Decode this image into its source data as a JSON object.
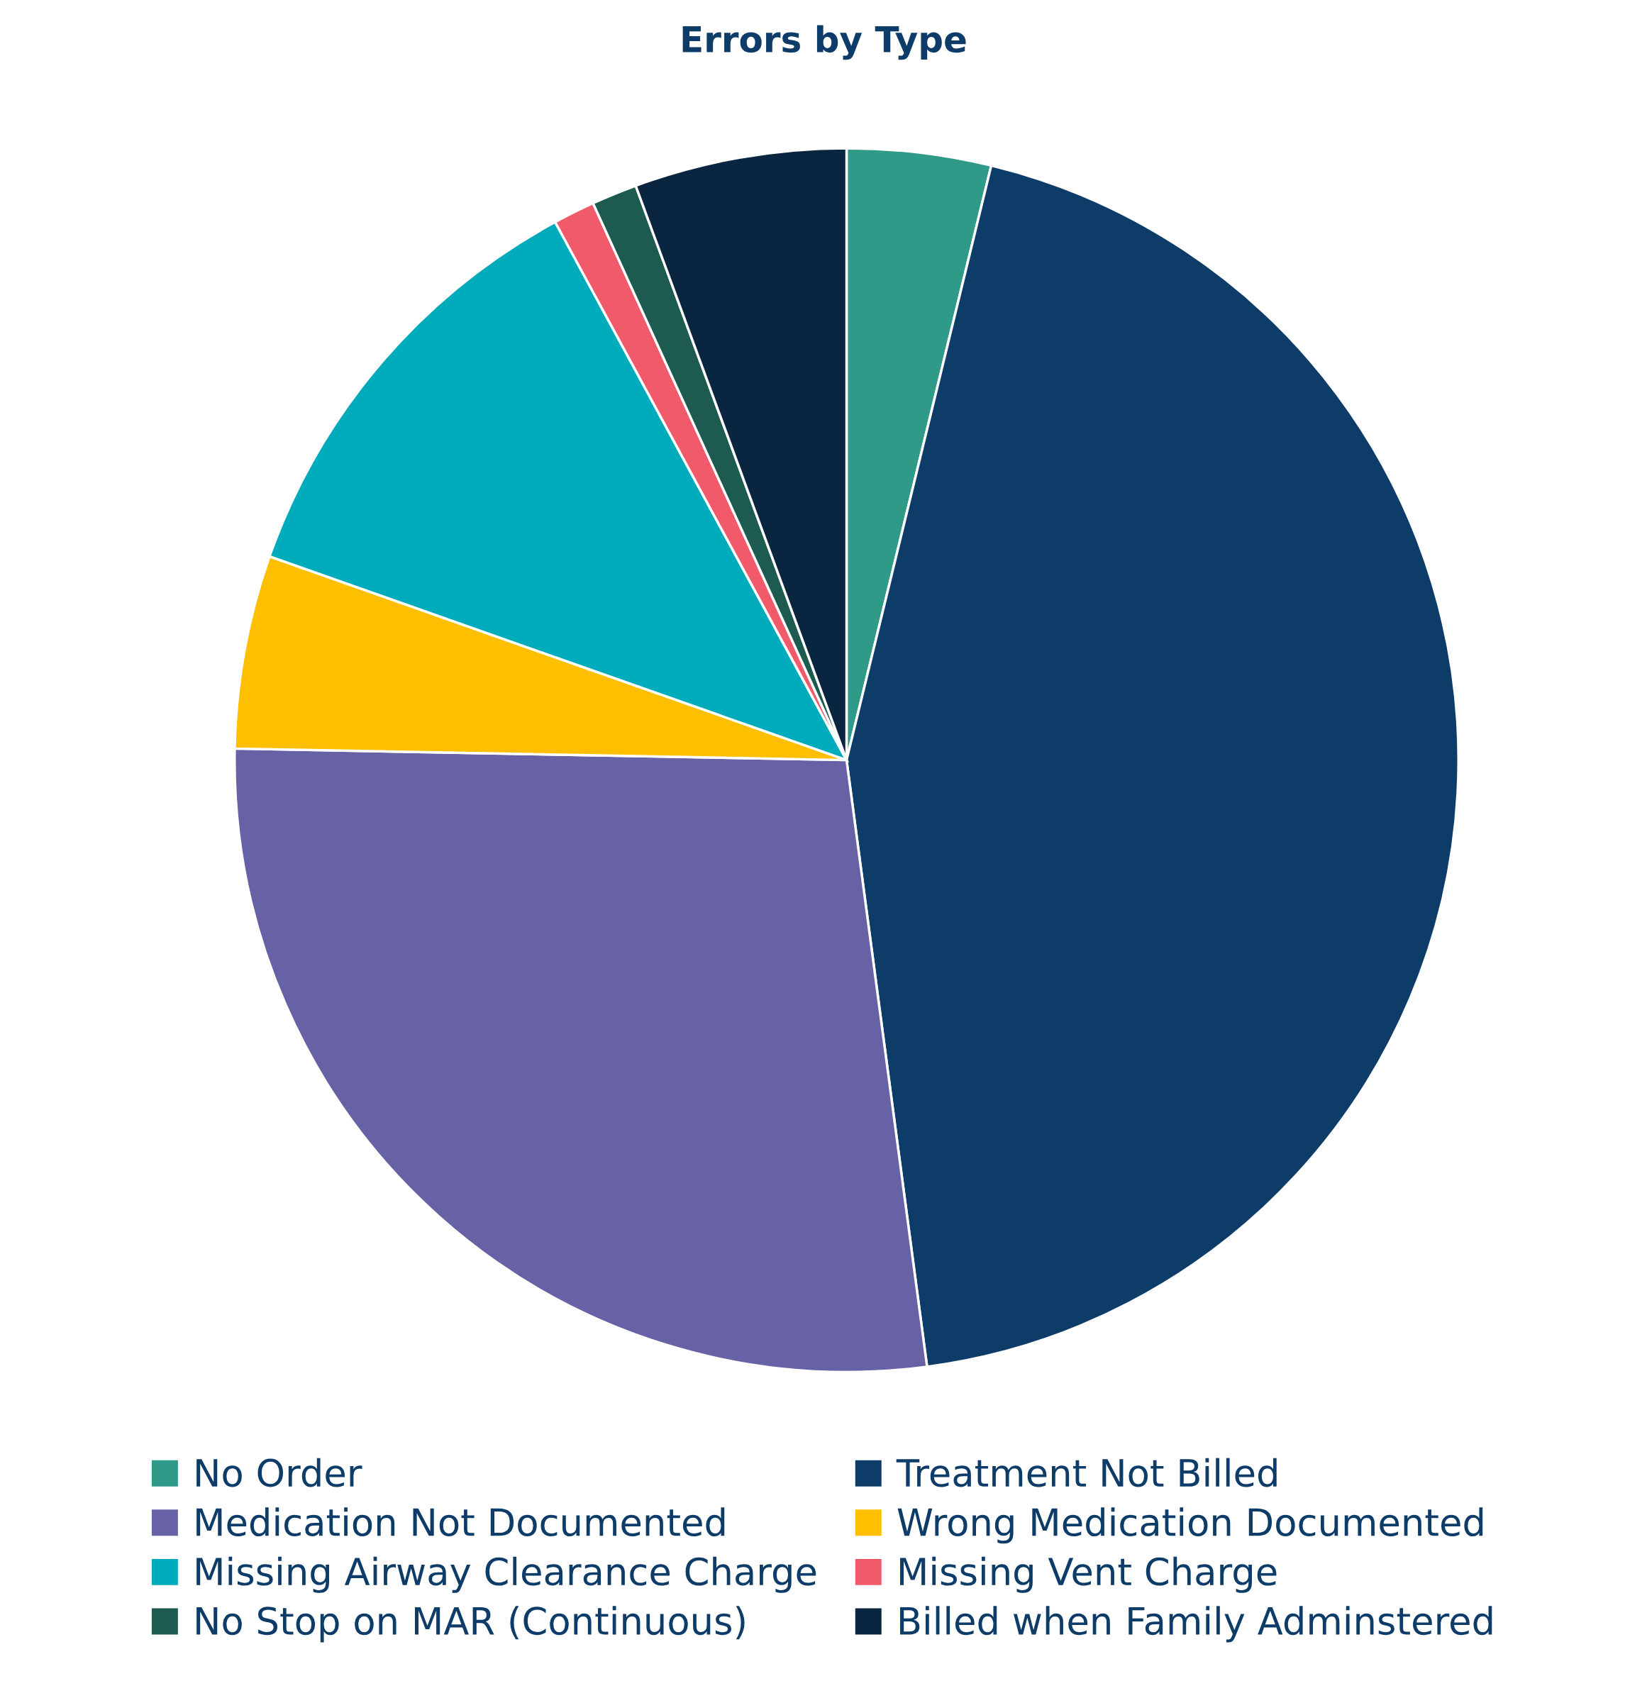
{
  "chart_data": {
    "type": "pie",
    "title": "Errors by Type",
    "categories": [
      "No Order",
      "Treatment Not Billed",
      "Medication Not Documented",
      "Wrong Medication Documented",
      "Missing Airway Clearance Charge",
      "Missing Vent Charge",
      "No Stop on MAR (Continuous)",
      "Billed when Family Adminstered"
    ],
    "values": [
      3.8,
      44.1,
      27.4,
      5.1,
      11.7,
      1.1,
      1.2,
      5.6
    ],
    "colors": [
      "#2e9a87",
      "#0e3c69",
      "#6762a6",
      "#fdbf00",
      "#00abbb",
      "#f05a6a",
      "#1d5a4f",
      "#0a2540"
    ],
    "legend": "bottom"
  }
}
